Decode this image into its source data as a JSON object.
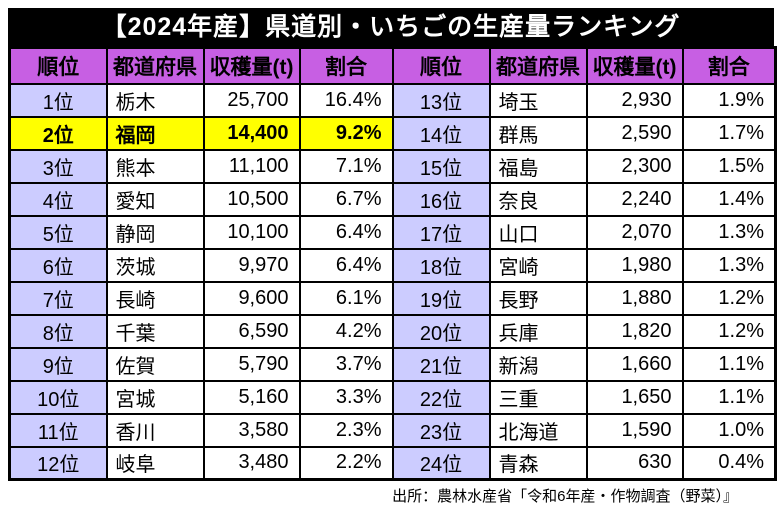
{
  "title": "【2024年産】県道別・いちごの生産量ランキング",
  "columns": [
    "順位",
    "都道府県",
    "収穫量(t)",
    "割合"
  ],
  "left_rows": [
    {
      "rank": "1位",
      "pref": "栃木",
      "harvest": "25,700",
      "share": "16.4%",
      "highlight": false
    },
    {
      "rank": "2位",
      "pref": "福岡",
      "harvest": "14,400",
      "share": "9.2%",
      "highlight": true
    },
    {
      "rank": "3位",
      "pref": "熊本",
      "harvest": "11,100",
      "share": "7.1%",
      "highlight": false
    },
    {
      "rank": "4位",
      "pref": "愛知",
      "harvest": "10,500",
      "share": "6.7%",
      "highlight": false
    },
    {
      "rank": "5位",
      "pref": "静岡",
      "harvest": "10,100",
      "share": "6.4%",
      "highlight": false
    },
    {
      "rank": "6位",
      "pref": "茨城",
      "harvest": "9,970",
      "share": "6.4%",
      "highlight": false
    },
    {
      "rank": "7位",
      "pref": "長崎",
      "harvest": "9,600",
      "share": "6.1%",
      "highlight": false
    },
    {
      "rank": "8位",
      "pref": "千葉",
      "harvest": "6,590",
      "share": "4.2%",
      "highlight": false
    },
    {
      "rank": "9位",
      "pref": "佐賀",
      "harvest": "5,790",
      "share": "3.7%",
      "highlight": false
    },
    {
      "rank": "10位",
      "pref": "宮城",
      "harvest": "5,160",
      "share": "3.3%",
      "highlight": false
    },
    {
      "rank": "11位",
      "pref": "香川",
      "harvest": "3,580",
      "share": "2.3%",
      "highlight": false
    },
    {
      "rank": "12位",
      "pref": "岐阜",
      "harvest": "3,480",
      "share": "2.2%",
      "highlight": false
    }
  ],
  "right_rows": [
    {
      "rank": "13位",
      "pref": "埼玉",
      "harvest": "2,930",
      "share": "1.9%",
      "highlight": false
    },
    {
      "rank": "14位",
      "pref": "群馬",
      "harvest": "2,590",
      "share": "1.7%",
      "highlight": false
    },
    {
      "rank": "15位",
      "pref": "福島",
      "harvest": "2,300",
      "share": "1.5%",
      "highlight": false
    },
    {
      "rank": "16位",
      "pref": "奈良",
      "harvest": "2,240",
      "share": "1.4%",
      "highlight": false
    },
    {
      "rank": "17位",
      "pref": "山口",
      "harvest": "2,070",
      "share": "1.3%",
      "highlight": false
    },
    {
      "rank": "18位",
      "pref": "宮崎",
      "harvest": "1,980",
      "share": "1.3%",
      "highlight": false
    },
    {
      "rank": "19位",
      "pref": "長野",
      "harvest": "1,880",
      "share": "1.2%",
      "highlight": false
    },
    {
      "rank": "20位",
      "pref": "兵庫",
      "harvest": "1,820",
      "share": "1.2%",
      "highlight": false
    },
    {
      "rank": "21位",
      "pref": "新潟",
      "harvest": "1,660",
      "share": "1.1%",
      "highlight": false
    },
    {
      "rank": "22位",
      "pref": "三重",
      "harvest": "1,650",
      "share": "1.1%",
      "highlight": false
    },
    {
      "rank": "23位",
      "pref": "北海道",
      "harvest": "1,590",
      "share": "1.0%",
      "highlight": false
    },
    {
      "rank": "24位",
      "pref": "青森",
      "harvest": "630",
      "share": "0.4%",
      "highlight": false
    }
  ],
  "footer": "出所：農林水産省「令和6年産・作物調査（野菜）』",
  "colors": {
    "title_bg": "#000000",
    "title_text": "#ffffff",
    "header_bg": "#c75fe3",
    "rank_bg": "#ccccff",
    "highlight_bg": "#ffff00",
    "border": "#000000",
    "page_bg": "#ffffff"
  },
  "chart_data": {
    "type": "table",
    "title": "【2024年産】県道別・いちごの生産量ランキング",
    "columns": [
      "順位",
      "都道府県",
      "収穫量(t)",
      "割合"
    ],
    "rows": [
      [
        1,
        "栃木",
        25700,
        16.4
      ],
      [
        2,
        "福岡",
        14400,
        9.2
      ],
      [
        3,
        "熊本",
        11100,
        7.1
      ],
      [
        4,
        "愛知",
        10500,
        6.7
      ],
      [
        5,
        "静岡",
        10100,
        6.4
      ],
      [
        6,
        "茨城",
        9970,
        6.4
      ],
      [
        7,
        "長崎",
        9600,
        6.1
      ],
      [
        8,
        "千葉",
        6590,
        4.2
      ],
      [
        9,
        "佐賀",
        5790,
        3.7
      ],
      [
        10,
        "宮城",
        5160,
        3.3
      ],
      [
        11,
        "香川",
        3580,
        2.3
      ],
      [
        12,
        "岐阜",
        3480,
        2.2
      ],
      [
        13,
        "埼玉",
        2930,
        1.9
      ],
      [
        14,
        "群馬",
        2590,
        1.7
      ],
      [
        15,
        "福島",
        2300,
        1.5
      ],
      [
        16,
        "奈良",
        2240,
        1.4
      ],
      [
        17,
        "山口",
        2070,
        1.3
      ],
      [
        18,
        "宮崎",
        1980,
        1.3
      ],
      [
        19,
        "長野",
        1880,
        1.2
      ],
      [
        20,
        "兵庫",
        1820,
        1.2
      ],
      [
        21,
        "新潟",
        1660,
        1.1
      ],
      [
        22,
        "三重",
        1650,
        1.1
      ],
      [
        23,
        "北海道",
        1590,
        1.0
      ],
      [
        24,
        "青森",
        630,
        0.4
      ]
    ],
    "highlighted_row_rank": 2,
    "source_note": "出所：農林水産省「令和6年産・作物調査（野菜）』"
  }
}
